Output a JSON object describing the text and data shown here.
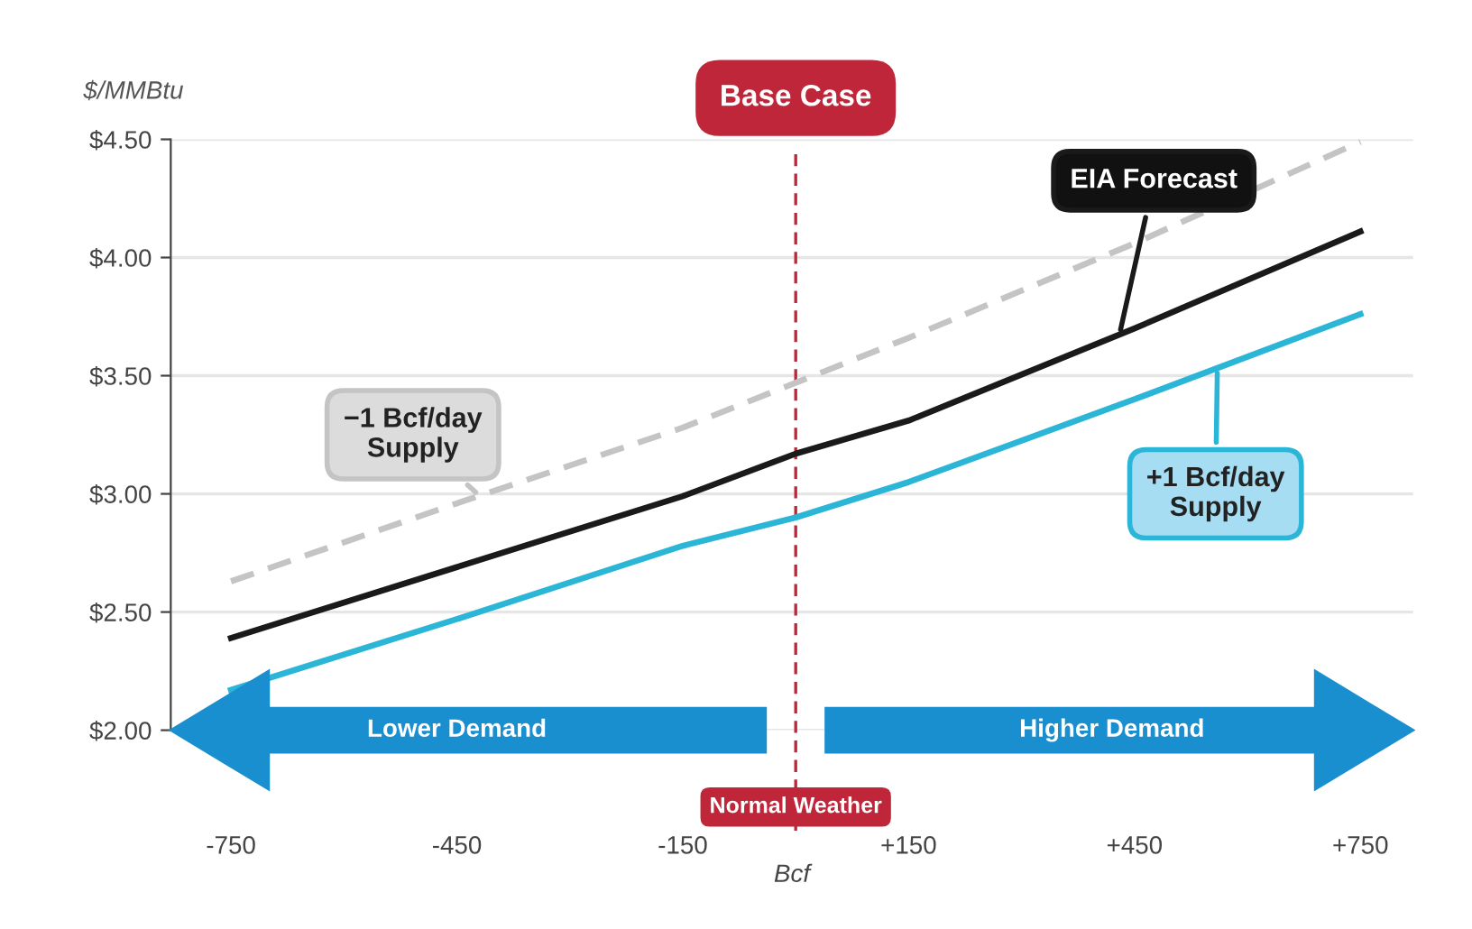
{
  "chart_data": {
    "type": "line",
    "xlabel": "Bcf",
    "ylabel": "$/MMBtu",
    "x": [
      -750,
      -450,
      -150,
      0,
      150,
      450,
      750
    ],
    "series": [
      {
        "name": "−1 Bcf/day Supply",
        "color": "#c4c4c4",
        "line_style": "dashed",
        "values": [
          2.63,
          2.96,
          3.28,
          3.47,
          3.66,
          4.06,
          4.49
        ]
      },
      {
        "name": "EIA Forecast",
        "color": "#1a1a1a",
        "line_style": "solid",
        "values": [
          2.39,
          2.69,
          2.99,
          3.17,
          3.31,
          3.7,
          4.11
        ]
      },
      {
        "name": "+1 Bcf/day Supply",
        "color": "#2bb5d6",
        "line_style": "solid",
        "values": [
          2.17,
          2.47,
          2.78,
          2.9,
          3.05,
          3.4,
          3.76
        ]
      }
    ],
    "xlim": [
      -830,
      820
    ],
    "ylim": [
      2.0,
      4.5
    ],
    "xticks": [
      {
        "value": -750,
        "label": "-750"
      },
      {
        "value": -450,
        "label": "-450"
      },
      {
        "value": -150,
        "label": "-150"
      },
      {
        "value": 150,
        "label": "+150"
      },
      {
        "value": 450,
        "label": "+450"
      },
      {
        "value": 750,
        "label": "+750"
      }
    ],
    "yticks": [
      {
        "value": 2.0,
        "label": "$2.00"
      },
      {
        "value": 2.5,
        "label": "$2.50"
      },
      {
        "value": 3.0,
        "label": "$3.00"
      },
      {
        "value": 3.5,
        "label": "$3.50"
      },
      {
        "value": 4.0,
        "label": "$4.00"
      },
      {
        "value": 4.5,
        "label": "$4.50"
      }
    ],
    "ref_lines": [
      {
        "axis": "x",
        "value": 0,
        "label": "Base Case",
        "color": "#c0263a",
        "line_style": "dashed"
      }
    ],
    "annotations": [
      "Lower Demand",
      "Higher Demand",
      "Normal Weather"
    ],
    "grid": "y",
    "marker": "none"
  }
}
